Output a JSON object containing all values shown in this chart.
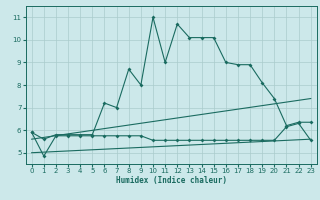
{
  "xlabel": "Humidex (Indice chaleur)",
  "xlim": [
    -0.5,
    23.5
  ],
  "ylim": [
    4.5,
    11.5
  ],
  "yticks": [
    5,
    6,
    7,
    8,
    9,
    10,
    11
  ],
  "xticks": [
    0,
    1,
    2,
    3,
    4,
    5,
    6,
    7,
    8,
    9,
    10,
    11,
    12,
    13,
    14,
    15,
    16,
    17,
    18,
    19,
    20,
    21,
    22,
    23
  ],
  "bg_color": "#cce8ea",
  "line_color": "#1a6b60",
  "grid_color": "#aacccc",
  "series1_x": [
    0,
    1,
    2,
    3,
    4,
    5,
    6,
    7,
    8,
    9,
    10,
    11,
    12,
    13,
    14,
    15,
    16,
    17,
    18,
    19,
    20,
    21,
    22,
    23
  ],
  "series1_y": [
    5.9,
    5.6,
    5.8,
    5.8,
    5.8,
    5.8,
    7.2,
    7.0,
    8.7,
    8.0,
    11.0,
    9.0,
    10.7,
    10.1,
    10.1,
    10.1,
    9.0,
    8.9,
    8.9,
    8.1,
    7.4,
    6.2,
    6.35,
    6.35
  ],
  "series2_x": [
    0,
    23
  ],
  "series2_y": [
    5.6,
    7.4
  ],
  "series3_x": [
    0,
    23
  ],
  "series3_y": [
    5.0,
    5.6
  ],
  "series4_x": [
    0,
    1,
    2,
    3,
    4,
    5,
    6,
    7,
    8,
    9,
    10,
    11,
    12,
    13,
    14,
    15,
    16,
    17,
    18,
    19,
    20,
    21,
    22,
    23
  ],
  "series4_y": [
    5.9,
    4.85,
    5.75,
    5.75,
    5.75,
    5.75,
    5.75,
    5.75,
    5.75,
    5.75,
    5.55,
    5.55,
    5.55,
    5.55,
    5.55,
    5.55,
    5.55,
    5.55,
    5.55,
    5.55,
    5.55,
    6.15,
    6.3,
    5.55
  ]
}
